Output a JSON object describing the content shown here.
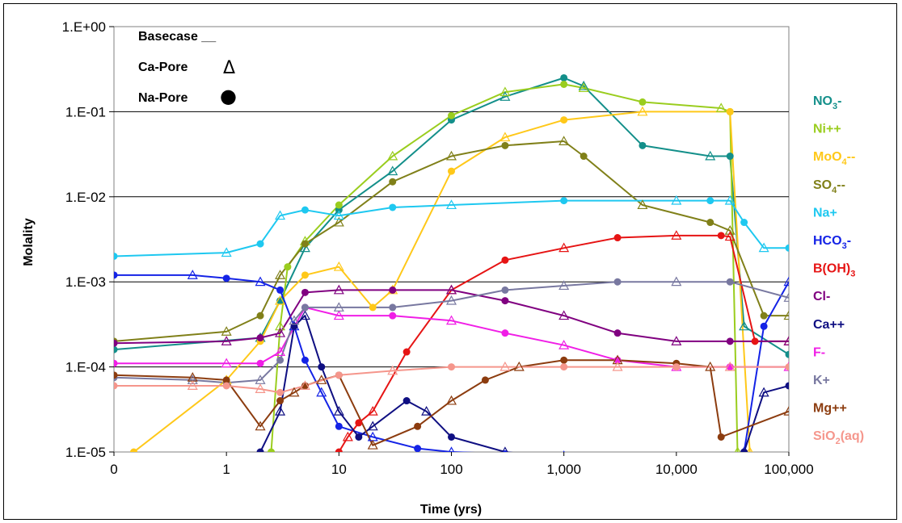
{
  "chart_data": {
    "type": "line",
    "title": "",
    "xlabel": "Time (yrs)",
    "ylabel": "Molality",
    "xscale": "log",
    "yscale": "log",
    "xlim": [
      0.1,
      100000
    ],
    "ylim": [
      1e-05,
      1
    ],
    "x_tick_labels": [
      "0",
      "1",
      "10",
      "100",
      "1,000",
      "10,000",
      "100,000"
    ],
    "y_tick_labels": [
      "1.E-05",
      "1.E-04",
      "1.E-03",
      "1.E-02",
      "1.E-01",
      "1.E+00"
    ],
    "grid": "horizontal",
    "key": {
      "basecase": "Basecase __",
      "ca_pore": "Ca-Pore",
      "ca_pore_symbol": "Δ",
      "na_pore": "Na-Pore",
      "na_pore_symbol": "●"
    },
    "legend_placement": "right",
    "series": [
      {
        "name": "NO3-",
        "label_main": "NO",
        "label_sub": "3",
        "label_tail": "-",
        "color": "#138F8A",
        "x": [
          0.1,
          2,
          3,
          5,
          10,
          30,
          100,
          300,
          1000,
          1500,
          5000,
          20000,
          30000,
          40000,
          100000
        ],
        "values": [
          0.00016,
          0.00022,
          0.0006,
          0.0025,
          0.007,
          0.02,
          0.08,
          0.15,
          0.25,
          0.2,
          0.04,
          0.03,
          0.03,
          0.0003,
          0.00014
        ]
      },
      {
        "name": "Ni++",
        "label_main": "Ni++",
        "label_sub": "",
        "label_tail": "",
        "color": "#9ACD1E",
        "x": [
          2.5,
          3,
          3.5,
          5,
          10,
          30,
          100,
          300,
          1000,
          1500,
          5000,
          25000,
          30000,
          35000
        ],
        "values": [
          1e-05,
          0.0003,
          0.0015,
          0.003,
          0.008,
          0.03,
          0.09,
          0.17,
          0.21,
          0.19,
          0.13,
          0.11,
          0.1,
          1e-05
        ]
      },
      {
        "name": "MoO4--",
        "label_main": "MoO",
        "label_sub": "4",
        "label_tail": "--",
        "color": "#FFC819",
        "x": [
          0.15,
          1,
          2,
          3,
          5,
          10,
          20,
          30,
          100,
          300,
          1000,
          5000,
          30000,
          45000
        ],
        "values": [
          1e-05,
          7e-05,
          0.0002,
          0.0006,
          0.0012,
          0.0015,
          0.0005,
          0.0008,
          0.02,
          0.05,
          0.08,
          0.1,
          0.1,
          1e-05
        ]
      },
      {
        "name": "SO4--",
        "label_main": "SO",
        "label_sub": "4",
        "label_tail": "--",
        "color": "#808019",
        "x": [
          0.1,
          1,
          2,
          3,
          5,
          10,
          30,
          100,
          300,
          1000,
          1500,
          5000,
          20000,
          30000,
          60000,
          100000
        ],
        "values": [
          0.0002,
          0.00026,
          0.0004,
          0.0012,
          0.0028,
          0.005,
          0.015,
          0.03,
          0.04,
          0.045,
          0.03,
          0.008,
          0.005,
          0.004,
          0.0004,
          0.0004
        ]
      },
      {
        "name": "Na+",
        "label_main": "Na+",
        "label_sub": "",
        "label_tail": "",
        "color": "#1EC8F0",
        "x": [
          0.1,
          1,
          2,
          3,
          5,
          10,
          30,
          100,
          1000,
          10000,
          20000,
          30000,
          40000,
          60000,
          100000
        ],
        "values": [
          0.002,
          0.0022,
          0.0028,
          0.006,
          0.007,
          0.006,
          0.0075,
          0.008,
          0.009,
          0.009,
          0.009,
          0.009,
          0.005,
          0.0025,
          0.0025
        ]
      },
      {
        "name": "HCO3-",
        "label_main": "HCO",
        "label_sub": "3",
        "label_tail": "-",
        "color": "#1423E6",
        "x": [
          0.1,
          0.5,
          1,
          2,
          3,
          4,
          5,
          7,
          10,
          20,
          50,
          100,
          300,
          1000,
          5000,
          20000,
          35000,
          40000,
          60000,
          100000
        ],
        "values": [
          0.0012,
          0.0012,
          0.0011,
          0.001,
          0.0008,
          0.0003,
          0.00012,
          5e-05,
          2e-05,
          1.5e-05,
          1.1e-05,
          1e-05,
          9.5e-06,
          9e-06,
          8.5e-06,
          8.5e-06,
          8.5e-06,
          1e-05,
          0.0003,
          0.001
        ]
      },
      {
        "name": "B(OH)3",
        "label_main": "B(OH)",
        "label_sub": "3",
        "label_tail": "",
        "color": "#E61414",
        "x": [
          10,
          12,
          15,
          20,
          40,
          100,
          300,
          1000,
          3000,
          10000,
          25000,
          30000,
          50000,
          100000
        ],
        "values": [
          1e-05,
          1.5e-05,
          2.2e-05,
          3e-05,
          0.00015,
          0.0008,
          0.0018,
          0.0025,
          0.0033,
          0.0035,
          0.0035,
          0.0034,
          0.0002,
          0.0002
        ]
      },
      {
        "name": "Cl-",
        "label_main": "Cl-",
        "label_sub": "",
        "label_tail": "",
        "color": "#800080",
        "x": [
          0.1,
          1,
          2,
          3,
          5,
          10,
          30,
          100,
          300,
          1000,
          3000,
          10000,
          30000,
          100000
        ],
        "values": [
          0.00019,
          0.0002,
          0.00022,
          0.00025,
          0.00075,
          0.0008,
          0.0008,
          0.0008,
          0.0006,
          0.0004,
          0.00025,
          0.0002,
          0.0002,
          0.0002
        ]
      },
      {
        "name": "Ca++",
        "label_main": "Ca++",
        "label_sub": "",
        "label_tail": "",
        "color": "#0F0F82",
        "x": [
          2,
          3,
          4,
          5,
          7,
          10,
          15,
          20,
          40,
          60,
          100,
          300,
          1000,
          30000,
          40000,
          60000,
          100000
        ],
        "values": [
          1e-05,
          3e-05,
          0.0003,
          0.0004,
          0.0001,
          3e-05,
          1.5e-05,
          2e-05,
          4e-05,
          3e-05,
          1.5e-05,
          1e-05,
          8.5e-06,
          8.5e-06,
          1e-05,
          5e-05,
          6e-05
        ]
      },
      {
        "name": "F-",
        "label_main": "F-",
        "label_sub": "",
        "label_tail": "",
        "color": "#F01EE6",
        "x": [
          0.1,
          1,
          2,
          3,
          5,
          10,
          30,
          100,
          300,
          1000,
          3000,
          10000,
          30000,
          100000
        ],
        "values": [
          0.00011,
          0.00011,
          0.00011,
          0.00015,
          0.0005,
          0.0004,
          0.0004,
          0.00035,
          0.00025,
          0.00018,
          0.00012,
          0.0001,
          0.0001,
          0.0001
        ]
      },
      {
        "name": "K+",
        "label_main": "K+",
        "label_sub": "",
        "label_tail": "",
        "color": "#7878A0",
        "x": [
          0.1,
          0.5,
          1,
          2,
          3,
          4,
          5,
          10,
          30,
          100,
          300,
          1000,
          3000,
          10000,
          30000,
          100000
        ],
        "values": [
          7.5e-05,
          7e-05,
          6.5e-05,
          7e-05,
          0.00012,
          0.00035,
          0.0005,
          0.0005,
          0.0005,
          0.0006,
          0.0008,
          0.0009,
          0.001,
          0.001,
          0.001,
          0.00065
        ]
      },
      {
        "name": "Mg++",
        "label_main": "Mg++",
        "label_sub": "",
        "label_tail": "",
        "color": "#8C3C0F",
        "x": [
          0.1,
          0.5,
          1,
          2,
          3,
          4,
          5,
          7,
          10,
          20,
          50,
          100,
          200,
          400,
          1000,
          3000,
          10000,
          20000,
          25000,
          100000
        ],
        "values": [
          8e-05,
          7.5e-05,
          7e-05,
          2e-05,
          4e-05,
          5e-05,
          6e-05,
          7e-05,
          8e-05,
          1.2e-05,
          2e-05,
          4e-05,
          7e-05,
          0.0001,
          0.00012,
          0.00012,
          0.00011,
          0.0001,
          1.5e-05,
          3e-05
        ]
      },
      {
        "name": "SiO2(aq)",
        "label_main": "SiO",
        "label_sub": "2",
        "label_tail": "(aq)",
        "color": "#F5968C",
        "x": [
          0.1,
          0.5,
          1,
          2,
          3,
          5,
          10,
          30,
          100,
          300,
          1000,
          3000,
          10000,
          30000,
          100000
        ],
        "values": [
          6e-05,
          6e-05,
          6e-05,
          5.5e-05,
          5e-05,
          6e-05,
          8e-05,
          9e-05,
          0.0001,
          0.0001,
          0.0001,
          0.0001,
          0.0001,
          0.0001,
          0.0001
        ]
      }
    ]
  }
}
